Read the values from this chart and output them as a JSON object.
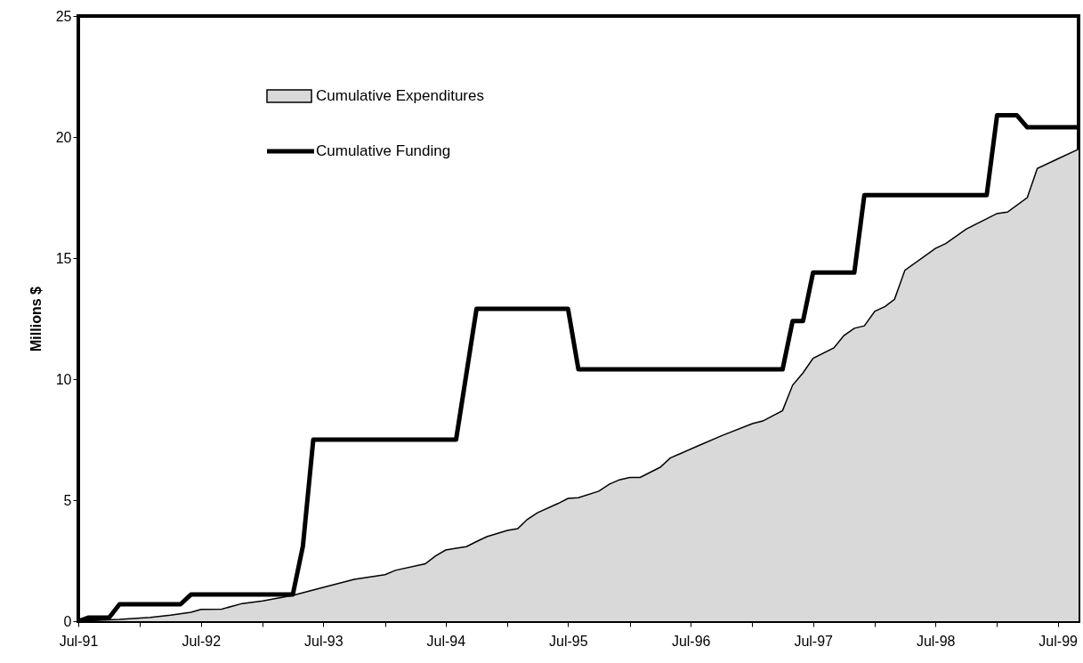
{
  "chart_data": {
    "type": "area",
    "ylabel": "Millions $",
    "legend": "top left",
    "xlim": [
      "1991-07",
      "1999-09"
    ],
    "xticks": [
      {
        "value": "1991-07",
        "label": "Jul-91"
      },
      {
        "value": "1992-01",
        "label": null
      },
      {
        "value": "1992-07",
        "label": "Jul-92"
      },
      {
        "value": "1993-01",
        "label": null
      },
      {
        "value": "1993-07",
        "label": "Jul-93"
      },
      {
        "value": "1994-01",
        "label": null
      },
      {
        "value": "1994-07",
        "label": "Jul-94"
      },
      {
        "value": "1995-01",
        "label": null
      },
      {
        "value": "1995-07",
        "label": "Jul-95"
      },
      {
        "value": "1996-01",
        "label": null
      },
      {
        "value": "1996-07",
        "label": "Jul-96"
      },
      {
        "value": "1997-01",
        "label": null
      },
      {
        "value": "1997-07",
        "label": "Jul-97"
      },
      {
        "value": "1998-01",
        "label": null
      },
      {
        "value": "1998-07",
        "label": "Jul-98"
      },
      {
        "value": "1999-01",
        "label": null
      },
      {
        "value": "1999-07",
        "label": "Jul-99"
      }
    ],
    "ylim": [
      0,
      25
    ],
    "yticks": [
      0,
      5,
      10,
      15,
      20,
      25
    ],
    "series": [
      {
        "name": "Cumulative Expenditures",
        "type": "area",
        "color": "#d9d9d9",
        "x": [
          "1991-07",
          "1991-11",
          "1992-02",
          "1992-04",
          "1992-06",
          "1992-07",
          "1992-09",
          "1992-11",
          "1993-01",
          "1993-04",
          "1993-07",
          "1993-10",
          "1994-01",
          "1994-02",
          "1994-05",
          "1994-06",
          "1994-07",
          "1994-09",
          "1994-10",
          "1994-11",
          "1995-01",
          "1995-02",
          "1995-03",
          "1995-04",
          "1995-06",
          "1995-07",
          "1995-08",
          "1995-10",
          "1995-11",
          "1995-12",
          "1996-01",
          "1996-02",
          "1996-04",
          "1996-05",
          "1996-08",
          "1996-10",
          "1997-01",
          "1997-02",
          "1997-04",
          "1997-05",
          "1997-06",
          "1997-07",
          "1997-09",
          "1997-10",
          "1997-11",
          "1997-12",
          "1998-01",
          "1998-02",
          "1998-03",
          "1998-04",
          "1998-07",
          "1998-08",
          "1998-10",
          "1999-01",
          "1999-02",
          "1999-04",
          "1999-05",
          "1999-07",
          "1999-09"
        ],
        "values": [
          0,
          0.07,
          0.16,
          0.25,
          0.37,
          0.49,
          0.5,
          0.73,
          0.84,
          1.07,
          1.4,
          1.73,
          1.92,
          2.1,
          2.37,
          2.7,
          2.94,
          3.08,
          3.29,
          3.49,
          3.75,
          3.82,
          4.2,
          4.48,
          4.86,
          5.07,
          5.1,
          5.37,
          5.66,
          5.84,
          5.94,
          5.94,
          6.36,
          6.74,
          7.3,
          7.66,
          8.16,
          8.27,
          8.7,
          9.75,
          10.26,
          10.86,
          11.29,
          11.8,
          12.1,
          12.2,
          12.8,
          13.0,
          13.3,
          14.5,
          15.4,
          15.6,
          16.2,
          16.84,
          16.9,
          17.5,
          18.7,
          19.1,
          19.5
        ]
      },
      {
        "name": "Cumulative Funding",
        "type": "line",
        "color": "#000000",
        "x": [
          "1991-07",
          "1991-08",
          "1991-10",
          "1991-11",
          "1992-05",
          "1992-06",
          "1993-04",
          "1993-05",
          "1993-06",
          "1994-08",
          "1994-10",
          "1995-07",
          "1995-08",
          "1997-04",
          "1997-05",
          "1997-06",
          "1997-07",
          "1997-11",
          "1997-12",
          "1998-12",
          "1999-01",
          "1999-03",
          "1999-04",
          "1999-09"
        ],
        "values": [
          0,
          0.15,
          0.15,
          0.7,
          0.7,
          1.1,
          1.1,
          3.1,
          7.5,
          7.5,
          12.9,
          12.9,
          10.4,
          10.4,
          12.4,
          12.4,
          14.4,
          14.4,
          17.6,
          17.6,
          20.9,
          20.9,
          20.4,
          20.4
        ]
      }
    ]
  }
}
